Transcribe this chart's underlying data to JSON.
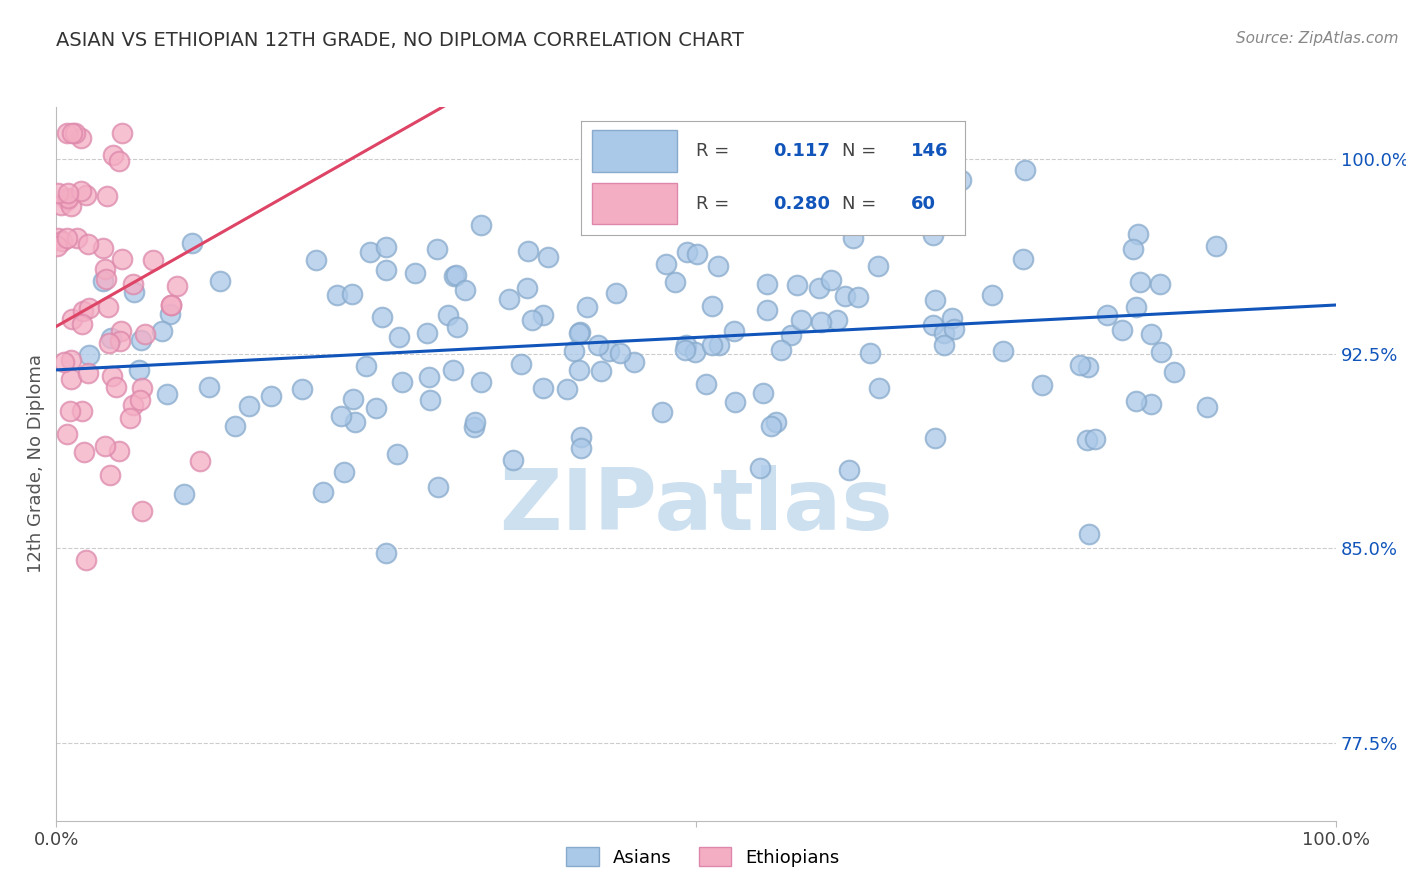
{
  "title": "ASIAN VS ETHIOPIAN 12TH GRADE, NO DIPLOMA CORRELATION CHART",
  "source_text": "Source: ZipAtlas.com",
  "ylabel": "12th Grade, No Diploma",
  "xlim": [
    0.0,
    1.0
  ],
  "ylim": [
    0.745,
    1.02
  ],
  "yticks": [
    0.775,
    0.85,
    0.925,
    1.0
  ],
  "ytick_labels": [
    "77.5%",
    "85.0%",
    "92.5%",
    "100.0%"
  ],
  "asian_R": 0.117,
  "asian_N": 146,
  "ethiopian_R": 0.28,
  "ethiopian_N": 60,
  "asian_color": "#aac8e8",
  "asian_edge_color": "#88aacc",
  "ethiopian_color": "#f4aec4",
  "ethiopian_edge_color": "#dd88aa",
  "asian_line_color": "#1155bb",
  "ethiopian_line_color": "#dd4466",
  "watermark": "ZIPatlas",
  "watermark_color": "#c8ddef",
  "background_color": "#ffffff",
  "grid_color": "#cccccc",
  "title_color": "#333333",
  "tick_color": "#1155bb",
  "legend_R_label_color": "#333333",
  "legend_val_color": "#1155bb"
}
